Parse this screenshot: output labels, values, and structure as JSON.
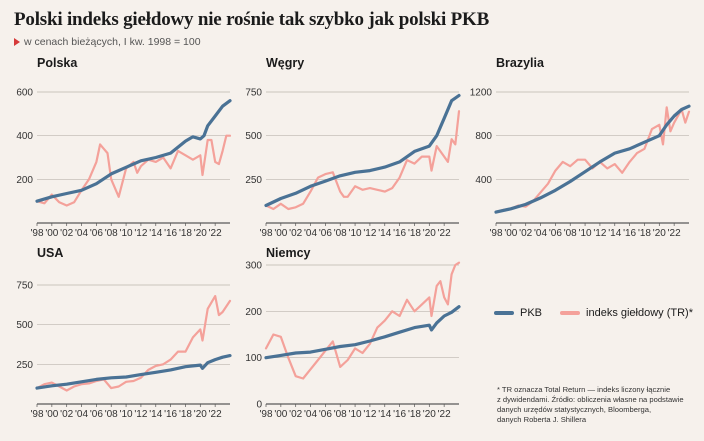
{
  "title": "Polski indeks giełdowy nie rośnie tak szybko jak polski PKB",
  "subtitle": "w cenach bieżących, I kw. 1998 = 100",
  "colors": {
    "pkb": "#4a7295",
    "index": "#f4a19a",
    "background": "#f6f1ec",
    "marker": "#d63a3a"
  },
  "legend": {
    "pkb": "PKB",
    "index": "indeks giełdowy (TR)*"
  },
  "footnote": {
    "line1": "* TR oznacza Total Return — indeks liczony łącznie",
    "line2": "z dywidendami. Źródło: obliczenia własne na podstawie",
    "line3": "danych urzędów statystycznych, Bloomberga,",
    "line4": "danych Roberta J. Shillera"
  },
  "chart_data": [
    {
      "type": "line",
      "title": "Polska",
      "x_tick_labels": [
        "'98",
        "'00",
        "'02",
        "'04",
        "'06",
        "'08",
        "'10",
        "'12",
        "'14",
        "'16",
        "'18",
        "'20",
        "'22"
      ],
      "y_ticks": [
        200,
        400,
        600
      ],
      "ylim": [
        0,
        600
      ],
      "xlim": [
        1998,
        2024
      ],
      "series": [
        {
          "name": "PKB",
          "x": [
            1998,
            2000,
            2002,
            2004,
            2006,
            2008,
            2010,
            2012,
            2014,
            2016,
            2018,
            2019,
            2020,
            2020.5,
            2021,
            2022,
            2023,
            2024
          ],
          "values": [
            100,
            120,
            135,
            150,
            180,
            225,
            255,
            285,
            300,
            320,
            375,
            395,
            385,
            400,
            445,
            490,
            535,
            560
          ]
        },
        {
          "name": "indeks giełdowy (TR)*",
          "x": [
            1998,
            1999,
            2000,
            2001,
            2002,
            2003,
            2004,
            2005,
            2006,
            2006.5,
            2007,
            2007.5,
            2008,
            2009,
            2010,
            2011,
            2011.5,
            2012,
            2013,
            2014,
            2015,
            2016,
            2017,
            2018,
            2019,
            2020,
            2020.3,
            2021,
            2021.5,
            2022,
            2022.5,
            2023,
            2023.5,
            2024
          ],
          "values": [
            100,
            90,
            130,
            95,
            80,
            95,
            150,
            200,
            280,
            360,
            340,
            320,
            200,
            120,
            250,
            280,
            230,
            260,
            290,
            280,
            300,
            250,
            330,
            310,
            290,
            310,
            220,
            380,
            380,
            280,
            270,
            330,
            400,
            400
          ]
        }
      ]
    },
    {
      "type": "line",
      "title": "Węgry",
      "x_tick_labels": [
        "'98",
        "'00",
        "'02",
        "'04",
        "'06",
        "'08",
        "'10",
        "'12",
        "'14",
        "'16",
        "'18",
        "'20",
        "'22"
      ],
      "y_ticks": [
        250,
        500,
        750
      ],
      "ylim": [
        0,
        750
      ],
      "xlim": [
        1998,
        2024
      ],
      "series": [
        {
          "name": "PKB",
          "x": [
            1998,
            2000,
            2002,
            2004,
            2006,
            2008,
            2010,
            2012,
            2014,
            2016,
            2018,
            2020,
            2021,
            2022,
            2023,
            2024
          ],
          "values": [
            100,
            140,
            170,
            210,
            240,
            270,
            290,
            300,
            320,
            350,
            410,
            440,
            500,
            600,
            700,
            730
          ]
        },
        {
          "name": "indeks giełdowy (TR)*",
          "x": [
            1998,
            1999,
            2000,
            2001,
            2002,
            2003,
            2004,
            2005,
            2006,
            2007,
            2008,
            2008.5,
            2009,
            2010,
            2011,
            2012,
            2013,
            2014,
            2015,
            2016,
            2017,
            2018,
            2019,
            2020,
            2020.3,
            2021,
            2022,
            2022.5,
            2023,
            2023.5,
            2024
          ],
          "values": [
            100,
            80,
            110,
            80,
            90,
            110,
            180,
            260,
            280,
            290,
            180,
            150,
            150,
            210,
            190,
            200,
            190,
            180,
            200,
            260,
            360,
            340,
            380,
            380,
            300,
            440,
            380,
            350,
            480,
            450,
            640
          ]
        }
      ]
    },
    {
      "type": "line",
      "title": "Brazylia",
      "x_tick_labels": [
        "'98",
        "'00",
        "'02",
        "'04",
        "'06",
        "'08",
        "'10",
        "'12",
        "'14",
        "'16",
        "'18",
        "'20",
        "'22"
      ],
      "y_ticks": [
        400,
        800,
        1200
      ],
      "ylim": [
        0,
        1200
      ],
      "xlim": [
        1998,
        2024
      ],
      "series": [
        {
          "name": "PKB",
          "x": [
            1998,
            2000,
            2002,
            2004,
            2006,
            2008,
            2010,
            2012,
            2014,
            2016,
            2018,
            2020,
            2021,
            2022,
            2023,
            2024
          ],
          "values": [
            100,
            130,
            170,
            230,
            300,
            380,
            470,
            560,
            640,
            680,
            740,
            800,
            900,
            980,
            1040,
            1070
          ]
        },
        {
          "name": "indeks giełdowy (TR)*",
          "x": [
            1998,
            1999,
            2000,
            2001,
            2002,
            2003,
            2004,
            2005,
            2006,
            2007,
            2008,
            2009,
            2010,
            2011,
            2012,
            2013,
            2014,
            2015,
            2016,
            2017,
            2018,
            2019,
            2020,
            2020.5,
            2021,
            2021.5,
            2022,
            2022.5,
            2023,
            2023.5,
            2024
          ],
          "values": [
            100,
            120,
            130,
            160,
            150,
            200,
            280,
            360,
            480,
            560,
            520,
            580,
            580,
            500,
            560,
            500,
            540,
            460,
            560,
            640,
            680,
            860,
            900,
            720,
            1060,
            840,
            920,
            980,
            1040,
            920,
            1020
          ]
        }
      ]
    },
    {
      "type": "line",
      "title": "USA",
      "x_tick_labels": [
        "'98",
        "'00",
        "'02",
        "'04",
        "'06",
        "'08",
        "'10",
        "'12",
        "'14",
        "'16",
        "'18",
        "'20",
        "'22"
      ],
      "y_ticks": [
        250,
        500,
        750
      ],
      "ylim": [
        0,
        750
      ],
      "xlim": [
        1998,
        2024
      ],
      "series": [
        {
          "name": "PKB",
          "x": [
            1998,
            2000,
            2002,
            2004,
            2006,
            2008,
            2010,
            2012,
            2014,
            2016,
            2018,
            2020,
            2020.3,
            2021,
            2022,
            2023,
            2024
          ],
          "values": [
            100,
            115,
            125,
            140,
            155,
            165,
            170,
            185,
            200,
            215,
            235,
            245,
            225,
            260,
            280,
            295,
            305
          ]
        },
        {
          "name": "indeks giełdowy (TR)*",
          "x": [
            1998,
            1999,
            2000,
            2001,
            2002,
            2003,
            2004,
            2005,
            2006,
            2007,
            2008,
            2009,
            2010,
            2011,
            2012,
            2013,
            2014,
            2015,
            2016,
            2017,
            2018,
            2019,
            2020,
            2020.3,
            2021,
            2022,
            2022.5,
            2023,
            2024
          ],
          "values": [
            100,
            125,
            135,
            110,
            85,
            110,
            125,
            130,
            145,
            155,
            100,
            110,
            140,
            145,
            165,
            215,
            240,
            250,
            280,
            330,
            330,
            420,
            470,
            400,
            600,
            680,
            560,
            580,
            650
          ]
        }
      ]
    },
    {
      "type": "line",
      "title": "Niemcy",
      "x_tick_labels": [
        "'98",
        "'00",
        "'02",
        "'04",
        "'06",
        "'08",
        "'10",
        "'12",
        "'14",
        "'16",
        "'18",
        "'20",
        "'22"
      ],
      "y_ticks": [
        0,
        100,
        200,
        300
      ],
      "ylim": [
        0,
        300
      ],
      "xlim": [
        1998,
        2024
      ],
      "series": [
        {
          "name": "PKB",
          "x": [
            1998,
            2000,
            2002,
            2004,
            2006,
            2008,
            2010,
            2012,
            2014,
            2016,
            2018,
            2020,
            2020.3,
            2021,
            2022,
            2023,
            2024
          ],
          "values": [
            100,
            105,
            110,
            112,
            118,
            124,
            128,
            136,
            145,
            155,
            165,
            170,
            160,
            175,
            190,
            198,
            210
          ]
        },
        {
          "name": "indeks giełdowy (TR)*",
          "x": [
            1998,
            1999,
            2000,
            2001,
            2002,
            2003,
            2004,
            2005,
            2006,
            2007,
            2008,
            2009,
            2010,
            2011,
            2012,
            2013,
            2014,
            2015,
            2016,
            2017,
            2018,
            2019,
            2020,
            2020.3,
            2021,
            2021.5,
            2022,
            2022.5,
            2023,
            2023.5,
            2024
          ],
          "values": [
            120,
            150,
            145,
            100,
            60,
            55,
            75,
            95,
            115,
            135,
            80,
            95,
            120,
            110,
            130,
            165,
            180,
            200,
            190,
            225,
            200,
            215,
            230,
            190,
            255,
            265,
            230,
            215,
            280,
            300,
            305
          ]
        }
      ]
    }
  ]
}
